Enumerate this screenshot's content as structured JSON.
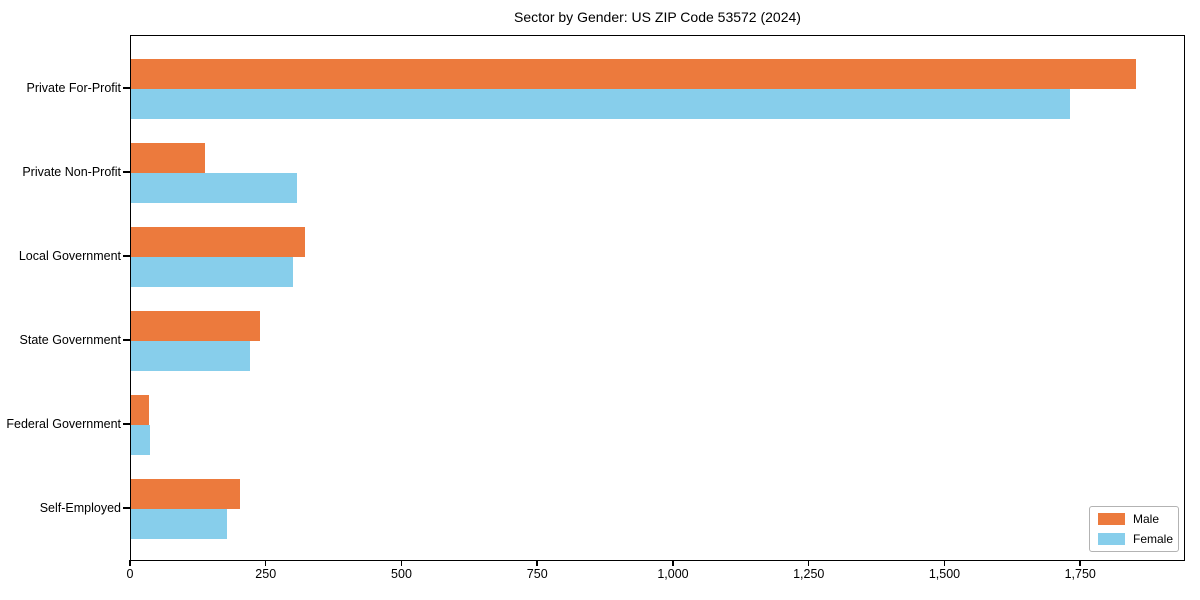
{
  "title": "Sector by Gender: US ZIP Code 53572 (2024)",
  "colors": {
    "male": "#EC7A3D",
    "female": "#87CEEB",
    "axis": "#000000",
    "legend_border": "#b3b3b3",
    "background": "#ffffff"
  },
  "chart_data": {
    "type": "bar",
    "orientation": "horizontal",
    "title": "Sector by Gender: US ZIP Code 53572 (2024)",
    "categories": [
      "Private For-Profit",
      "Private Non-Profit",
      "Local Government",
      "State Government",
      "Federal Government",
      "Self-Employed"
    ],
    "series": [
      {
        "name": "Male",
        "color": "#EC7A3D",
        "values": [
          1850,
          136,
          320,
          238,
          33,
          200
        ]
      },
      {
        "name": "Female",
        "color": "#87CEEB",
        "values": [
          1730,
          305,
          298,
          219,
          35,
          177
        ]
      }
    ],
    "xlabel": "",
    "ylabel": "",
    "xlim": [
      0,
      1943
    ],
    "x_ticks": [
      0,
      250,
      500,
      750,
      1000,
      1250,
      1500,
      1750
    ],
    "x_tick_labels": [
      "0",
      "250",
      "500",
      "750",
      "1,000",
      "1,250",
      "1,500",
      "1,750"
    ],
    "grid": false,
    "legend": {
      "position": "lower right",
      "entries": [
        "Male",
        "Female"
      ]
    }
  }
}
